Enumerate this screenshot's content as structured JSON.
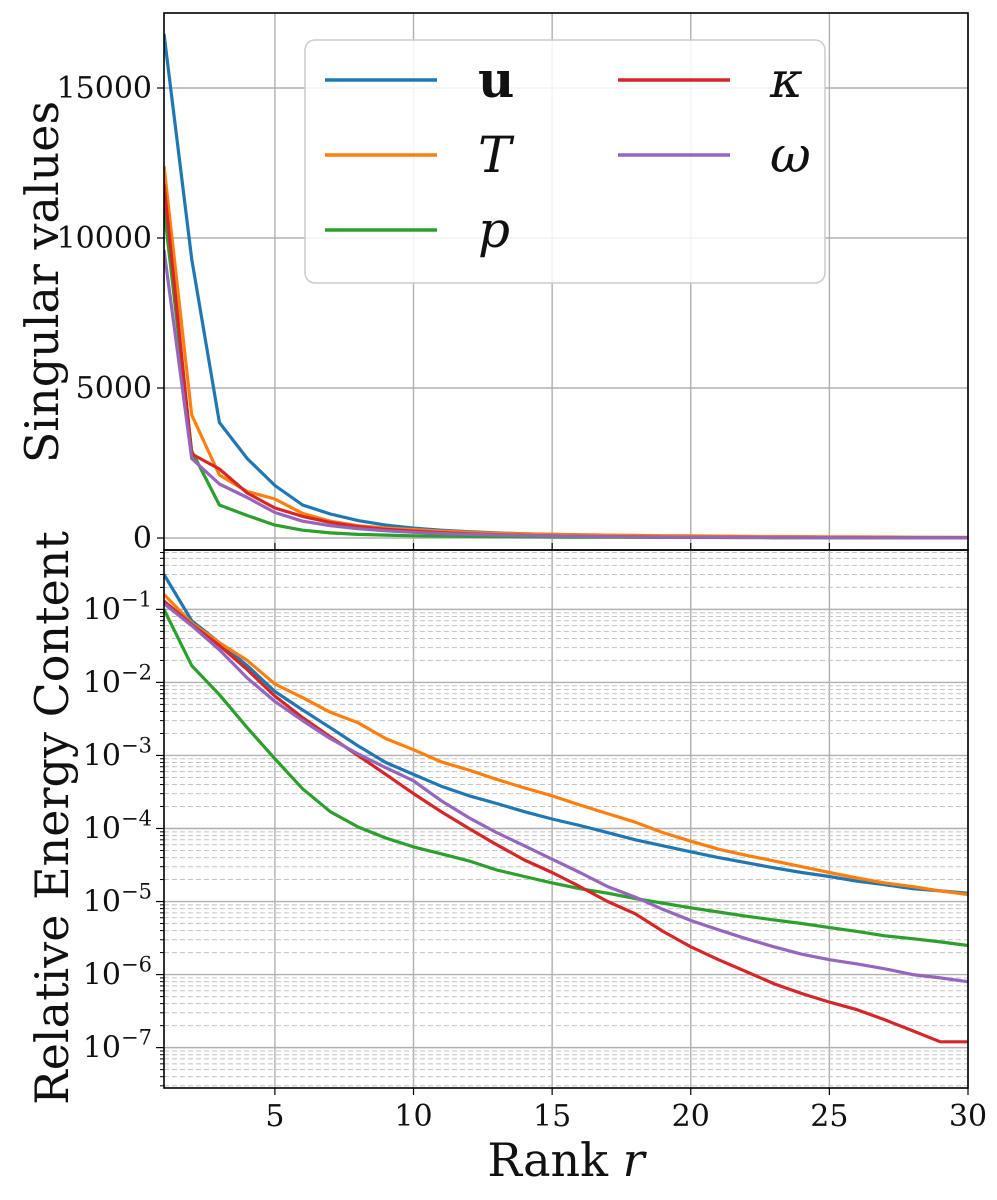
{
  "chart_data": [
    {
      "type": "line",
      "panel": "top",
      "ylabel": "Singular values",
      "xlabel": "",
      "xlim": [
        1,
        30
      ],
      "ylim": [
        -400,
        17500
      ],
      "yticks": [
        0,
        5000,
        10000,
        15000
      ],
      "ytick_labels": [
        "0",
        "5000",
        "10000",
        "15000"
      ],
      "grid": true,
      "legend": {
        "placement": "top-center",
        "columns": 2
      },
      "x": [
        1,
        2,
        3,
        4,
        5,
        6,
        7,
        8,
        9,
        10,
        11,
        12,
        13,
        14,
        15,
        16,
        17,
        18,
        19,
        20,
        21,
        22,
        23,
        24,
        25,
        26,
        27,
        28,
        29,
        30
      ],
      "series": [
        {
          "name": "u",
          "color": "#1f77b4",
          "values": [
            16800,
            9300,
            3850,
            2650,
            1750,
            1100,
            800,
            580,
            430,
            330,
            260,
            210,
            170,
            140,
            120,
            100,
            85,
            72,
            62,
            54,
            47,
            41,
            36,
            31,
            27,
            24,
            21,
            18,
            16,
            14
          ]
        },
        {
          "name": "T",
          "color": "#ff7f0e",
          "values": [
            12400,
            4100,
            2100,
            1550,
            1300,
            820,
            560,
            410,
            330,
            280,
            230,
            190,
            160,
            140,
            125,
            110,
            98,
            88,
            78,
            70,
            62,
            56,
            50,
            45,
            40,
            36,
            32,
            28,
            25,
            22
          ]
        },
        {
          "name": "p",
          "color": "#2ca02c",
          "values": [
            11000,
            2900,
            1100,
            750,
            430,
            260,
            170,
            120,
            95,
            75,
            62,
            52,
            45,
            39,
            34,
            30,
            26,
            23,
            21,
            19,
            17,
            15,
            14,
            13,
            12,
            11,
            10,
            9,
            8,
            7
          ]
        },
        {
          "name": "κ",
          "color": "#d62728",
          "values": [
            11800,
            2800,
            2300,
            1500,
            1000,
            720,
            520,
            380,
            290,
            230,
            180,
            140,
            110,
            90,
            72,
            58,
            47,
            38,
            31,
            25,
            20,
            16,
            13,
            11,
            9,
            7,
            6,
            5,
            4,
            3
          ]
        },
        {
          "name": "ω",
          "color": "#9467bd",
          "values": [
            9600,
            2650,
            1800,
            1350,
            850,
            560,
            410,
            310,
            240,
            190,
            150,
            120,
            100,
            82,
            68,
            56,
            47,
            39,
            33,
            28,
            24,
            20,
            17,
            15,
            13,
            11,
            9,
            8,
            7,
            6
          ]
        }
      ]
    },
    {
      "type": "line",
      "panel": "bottom",
      "ylabel": "Relative Energy Content",
      "xlabel": "Rank r",
      "xlim": [
        1,
        30
      ],
      "ylim": [
        2.8e-08,
        0.65
      ],
      "yscale": "log",
      "yticks": [
        "10^-1",
        "10^-2",
        "10^-3",
        "10^-4",
        "10^-5",
        "10^-6",
        "10^-7"
      ],
      "xticks": [
        5,
        10,
        15,
        20,
        25,
        30
      ],
      "grid": true,
      "minor_grid": "dashed",
      "x": [
        1,
        2,
        3,
        4,
        5,
        6,
        7,
        8,
        9,
        10,
        11,
        12,
        13,
        14,
        15,
        16,
        17,
        18,
        19,
        20,
        21,
        22,
        23,
        24,
        25,
        26,
        27,
        28,
        29,
        30
      ],
      "series": [
        {
          "name": "u",
          "color": "#1f77b4",
          "values": [
            0.3,
            0.07,
            0.035,
            0.017,
            0.0075,
            0.0042,
            0.0024,
            0.00135,
            0.0008,
            0.00055,
            0.00038,
            0.00028,
            0.00022,
            0.00017,
            0.000135,
            0.00011,
            8.8e-05,
            7e-05,
            5.8e-05,
            4.8e-05,
            4e-05,
            3.4e-05,
            2.9e-05,
            2.5e-05,
            2.2e-05,
            1.9e-05,
            1.7e-05,
            1.5e-05,
            1.4e-05,
            1.3e-05
          ]
        },
        {
          "name": "T",
          "color": "#ff7f0e",
          "values": [
            0.16,
            0.065,
            0.035,
            0.02,
            0.0095,
            0.0062,
            0.0039,
            0.0028,
            0.0017,
            0.0012,
            0.00082,
            0.00063,
            0.00047,
            0.00036,
            0.00028,
            0.00021,
            0.00016,
            0.000122,
            8.8e-05,
            6.7e-05,
            5.2e-05,
            4.3e-05,
            3.6e-05,
            3e-05,
            2.5e-05,
            2.1e-05,
            1.8e-05,
            1.6e-05,
            1.4e-05,
            1.25e-05
          ]
        },
        {
          "name": "p",
          "color": "#2ca02c",
          "values": [
            0.1,
            0.017,
            0.0068,
            0.0024,
            0.0009,
            0.00035,
            0.00017,
            0.000105,
            7.4e-05,
            5.6e-05,
            4.5e-05,
            3.6e-05,
            2.7e-05,
            2.2e-05,
            1.8e-05,
            1.5e-05,
            1.3e-05,
            1.1e-05,
            9.5e-06,
            8.2e-06,
            7.2e-06,
            6.3e-06,
            5.6e-06,
            5e-06,
            4.4e-06,
            3.9e-06,
            3.4e-06,
            3.1e-06,
            2.8e-06,
            2.5e-06
          ]
        },
        {
          "name": "κ",
          "color": "#d62728",
          "values": [
            0.13,
            0.062,
            0.032,
            0.015,
            0.0065,
            0.0033,
            0.0018,
            0.001,
            0.00055,
            0.0003,
            0.00017,
            0.0001,
            6e-05,
            3.7e-05,
            2.5e-05,
            1.6e-05,
            1e-05,
            6.8e-06,
            3.9e-06,
            2.4e-06,
            1.6e-06,
            1.1e-06,
            7.5e-07,
            5.5e-07,
            4.2e-07,
            3.3e-07,
            2.4e-07,
            1.7e-07,
            1.2e-07,
            1.2e-07
          ]
        },
        {
          "name": "ω",
          "color": "#9467bd",
          "values": [
            0.12,
            0.06,
            0.028,
            0.0115,
            0.0055,
            0.003,
            0.0017,
            0.00105,
            0.00068,
            0.00045,
            0.00024,
            0.00014,
            8.8e-05,
            5.8e-05,
            3.8e-05,
            2.5e-05,
            1.6e-05,
            1.15e-05,
            7.8e-06,
            5.5e-06,
            4.1e-06,
            3.1e-06,
            2.4e-06,
            1.9e-06,
            1.6e-06,
            1.4e-06,
            1.2e-06,
            1e-06,
            9e-07,
            8e-07
          ]
        }
      ]
    }
  ]
}
